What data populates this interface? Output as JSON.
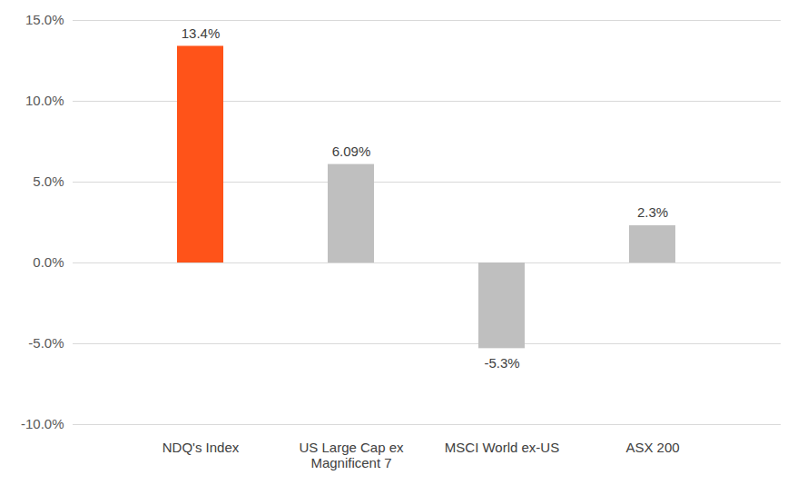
{
  "chart_data": {
    "type": "bar",
    "categories": [
      "NDQ's Index",
      "US Large Cap ex\nMagnificent 7",
      "MSCI World ex-US",
      "ASX 200"
    ],
    "values": [
      13.4,
      6.09,
      -5.3,
      2.3
    ],
    "value_labels": [
      "13.4%",
      "6.09%",
      "-5.3%",
      "2.3%"
    ],
    "colors": [
      "#FF5319",
      "#BFBFBF",
      "#BFBFBF",
      "#BFBFBF"
    ],
    "ylim": [
      -10,
      15
    ],
    "yticks": [
      {
        "value": -10,
        "label": "-10.0%"
      },
      {
        "value": -5,
        "label": "-5.0%"
      },
      {
        "value": 0,
        "label": "0.0%"
      },
      {
        "value": 5,
        "label": "5.0%"
      },
      {
        "value": 10,
        "label": "10.0%"
      },
      {
        "value": 15,
        "label": "15.0%"
      }
    ],
    "grid": true,
    "data_labels": true
  }
}
